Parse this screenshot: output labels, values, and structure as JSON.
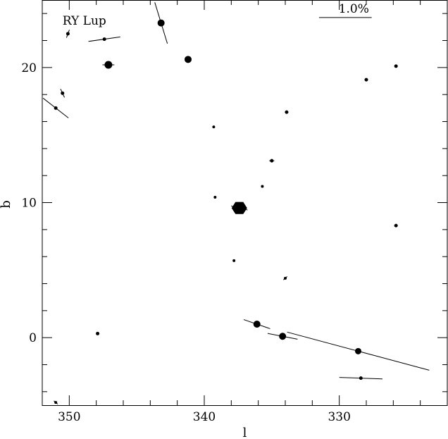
{
  "chart_data": {
    "type": "scatter",
    "title": "",
    "xlabel": "l",
    "ylabel": "b",
    "xlim": [
      352,
      322
    ],
    "ylim": [
      -5,
      25
    ],
    "x_reversed": true,
    "grid": false,
    "x_ticks": [
      350,
      340,
      330
    ],
    "y_ticks": [
      0,
      10,
      20
    ],
    "annotations": [
      {
        "text": "RY Lup",
        "x": 350.5,
        "y": 23.5
      }
    ],
    "scale_bar": {
      "label": "1.0%",
      "x_start": 331.5,
      "x_end": 327.6,
      "y": 23.7
    },
    "points": [
      {
        "l": 343.2,
        "b": 23.3,
        "size": 5,
        "vec_len": 5.1,
        "vec_angle": -73
      },
      {
        "l": 341.2,
        "b": 20.6,
        "size": 5,
        "vec_len": 0,
        "vec_angle": 0
      },
      {
        "l": 347.1,
        "b": 20.2,
        "size": 5.5,
        "vec_len": 1.4,
        "vec_angle": 0
      },
      {
        "l": 350.1,
        "b": 22.5,
        "size": 2.5,
        "vec_len": 1.0,
        "vec_angle": 70
      },
      {
        "l": 347.4,
        "b": 22.1,
        "size": 2.5,
        "vec_len": 3.8,
        "vec_angle": 8
      },
      {
        "l": 350.5,
        "b": 18.1,
        "size": 2.5,
        "vec_len": 1.1,
        "vec_angle": -65
      },
      {
        "l": 351.0,
        "b": 17.0,
        "size": 2.5,
        "vec_len": 3.8,
        "vec_angle": -38
      },
      {
        "l": 325.8,
        "b": 20.1,
        "size": 2.5,
        "vec_len": 0,
        "vec_angle": 0
      },
      {
        "l": 328.0,
        "b": 19.1,
        "size": 2.5,
        "vec_len": 0.4,
        "vec_angle": 0
      },
      {
        "l": 333.9,
        "b": 16.7,
        "size": 2.5,
        "vec_len": 0.4,
        "vec_angle": 0
      },
      {
        "l": 339.3,
        "b": 15.6,
        "size": 2,
        "vec_len": 0,
        "vec_angle": 0
      },
      {
        "l": 335.0,
        "b": 13.1,
        "size": 2.5,
        "vec_len": 0.6,
        "vec_angle": 0
      },
      {
        "l": 335.7,
        "b": 11.2,
        "size": 2,
        "vec_len": 0,
        "vec_angle": 0
      },
      {
        "l": 339.2,
        "b": 10.4,
        "size": 2,
        "vec_len": 0,
        "vec_angle": 0
      },
      {
        "l": 337.4,
        "b": 9.6,
        "size": 11,
        "vec_len": 2.0,
        "vec_angle": -14
      },
      {
        "l": 325.8,
        "b": 8.3,
        "size": 2.5,
        "vec_len": 0,
        "vec_angle": 0
      },
      {
        "l": 337.8,
        "b": 5.7,
        "size": 2,
        "vec_len": 0.2,
        "vec_angle": 0
      },
      {
        "l": 334.0,
        "b": 4.4,
        "size": 2,
        "vec_len": 0.6,
        "vec_angle": 42
      },
      {
        "l": 336.1,
        "b": 1.0,
        "size": 5,
        "vec_len": 3.3,
        "vec_angle": -19
      },
      {
        "l": 334.2,
        "b": 0.1,
        "size": 5,
        "vec_len": 3.6,
        "vec_angle": -11
      },
      {
        "l": 328.6,
        "b": -1.0,
        "size": 4.5,
        "vec_len": 17.4,
        "vec_angle": -15
      },
      {
        "l": 328.4,
        "b": -3.0,
        "size": 2.5,
        "vec_len": 5.1,
        "vec_angle": -2
      },
      {
        "l": 347.9,
        "b": 0.3,
        "size": 2.5,
        "vec_len": 0.2,
        "vec_angle": 0
      },
      {
        "l": 351.0,
        "b": -4.8,
        "size": 2,
        "vec_len": 0.6,
        "vec_angle": -40
      }
    ]
  }
}
